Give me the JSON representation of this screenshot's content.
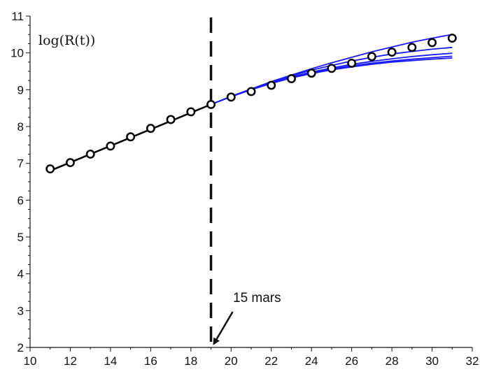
{
  "chart_data": {
    "type": "line",
    "title": "",
    "xlabel": "",
    "ylabel": "log(R(t))",
    "xlim": [
      10,
      32
    ],
    "ylim": [
      2,
      11
    ],
    "x_ticks": [
      "10",
      "12",
      "14",
      "16",
      "18",
      "20",
      "22",
      "24",
      "26",
      "28",
      "30",
      "32"
    ],
    "y_ticks": [
      "2",
      "3",
      "4",
      "5",
      "6",
      "7",
      "8",
      "9",
      "10",
      "11"
    ],
    "grid": false,
    "legend": "none",
    "colors": {
      "observed": "#000000",
      "fit": "#000000",
      "scenarios": "#1a1aff",
      "marker_fill": "#ffffff"
    },
    "observed": {
      "x": [
        11,
        12,
        13,
        14,
        15,
        16,
        17,
        18,
        19,
        20,
        21,
        22,
        23,
        24,
        25,
        26,
        27,
        28,
        29,
        30,
        31
      ],
      "y": [
        6.85,
        7.02,
        7.25,
        7.47,
        7.72,
        7.95,
        8.19,
        8.4,
        8.6,
        8.8,
        8.95,
        9.12,
        9.3,
        9.45,
        9.58,
        9.72,
        9.9,
        10.02,
        10.15,
        10.28,
        10.4
      ]
    },
    "fit_line": {
      "x": [
        11,
        19
      ],
      "y": [
        6.8,
        8.6
      ]
    },
    "scenario_lines": [
      {
        "x": [
          19,
          20,
          21,
          22,
          23,
          24,
          25,
          26,
          27,
          28,
          29,
          30,
          31
        ],
        "y": [
          8.6,
          8.82,
          9.02,
          9.22,
          9.4,
          9.57,
          9.73,
          9.88,
          10.03,
          10.16,
          10.29,
          10.4,
          10.5
        ]
      },
      {
        "x": [
          19,
          20,
          21,
          22,
          23,
          24,
          25,
          26,
          27,
          28,
          29,
          30,
          31
        ],
        "y": [
          8.6,
          8.82,
          9.02,
          9.21,
          9.38,
          9.53,
          9.66,
          9.78,
          9.88,
          9.97,
          10.04,
          10.1,
          10.15
        ]
      },
      {
        "x": [
          19,
          20,
          21,
          22,
          23,
          24,
          25,
          26,
          27,
          28,
          29,
          30,
          31
        ],
        "y": [
          8.6,
          8.82,
          9.01,
          9.19,
          9.35,
          9.48,
          9.59,
          9.69,
          9.77,
          9.84,
          9.9,
          9.95,
          9.99
        ]
      },
      {
        "x": [
          19,
          20,
          21,
          22,
          23,
          24,
          25,
          26,
          27,
          28,
          29,
          30,
          31
        ],
        "y": [
          8.6,
          8.81,
          9.0,
          9.18,
          9.33,
          9.46,
          9.56,
          9.65,
          9.72,
          9.78,
          9.83,
          9.87,
          9.91
        ]
      },
      {
        "x": [
          19,
          20,
          21,
          22,
          23,
          24,
          25,
          26,
          27,
          28,
          29,
          30,
          31
        ],
        "y": [
          8.6,
          8.81,
          9.0,
          9.17,
          9.32,
          9.44,
          9.54,
          9.62,
          9.69,
          9.75,
          9.79,
          9.83,
          9.86
        ]
      }
    ],
    "vline": {
      "x": 19,
      "style": "dashed"
    },
    "annotation": {
      "text": "15 mars",
      "x": 19,
      "y": 2
    }
  }
}
